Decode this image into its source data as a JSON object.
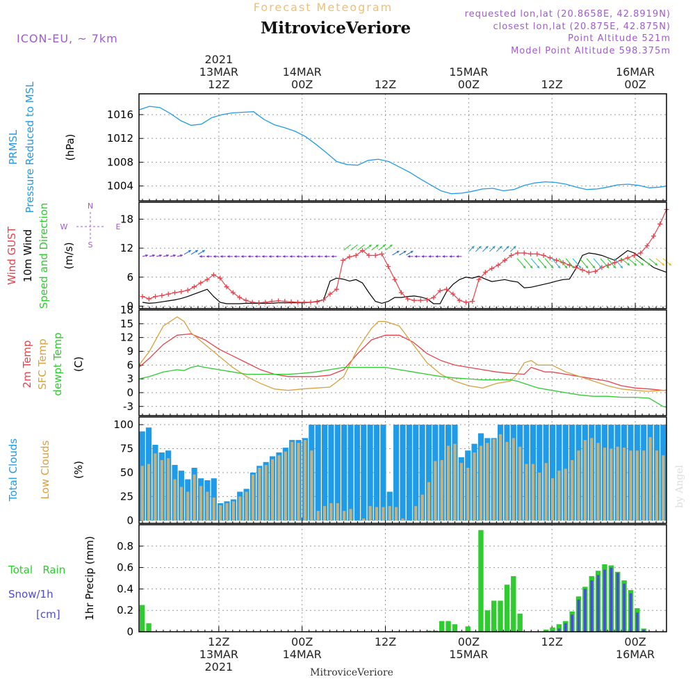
{
  "header": {
    "top_title": "Forecast Meteogram",
    "station": "MitroviceVeriore",
    "model": "ICON-EU, ~ 7km",
    "requested": "requested lon,lat (20.8658E, 42.8919N)",
    "closest": "closest lon,lat (20.875E, 42.875N)",
    "point_alt": "Point Altitude 521m",
    "model_alt": "Model Point Altitude 598.375m",
    "footer_station": "MitroviceVeriore",
    "watermark": "by Angel"
  },
  "colors": {
    "prmsl": "#1f9be8",
    "gust": "#e8424a",
    "wind": "#000000",
    "arrows_green": "#2ecc2e",
    "arrows_violet": "#7a2fd0",
    "t2m": "#e8424a",
    "sfc": "#d9a040",
    "dew": "#2ecc2e",
    "total_clouds": "#1f9be8",
    "low_clouds": "#c8b07a",
    "rain": "#2ecc2e",
    "snow": "#4a4ae0",
    "header_violet": "#a05ad0",
    "title_orange": "#f0c070"
  },
  "time_axis": {
    "top_labels": [
      {
        "x": 12,
        "lines": [
          "2021",
          "13MAR",
          "12Z"
        ]
      },
      {
        "x": 24,
        "lines": [
          "14MAR",
          "00Z"
        ]
      },
      {
        "x": 36,
        "lines": [
          "12Z"
        ]
      },
      {
        "x": 48,
        "lines": [
          "15MAR",
          "00Z"
        ]
      },
      {
        "x": 60,
        "lines": [
          "12Z"
        ]
      },
      {
        "x": 72,
        "lines": [
          "16MAR",
          "00Z"
        ]
      }
    ],
    "bottom_labels": [
      {
        "x": 12,
        "lines": [
          "12Z",
          "13MAR",
          "2021"
        ]
      },
      {
        "x": 24,
        "lines": [
          "00Z",
          "14MAR"
        ]
      },
      {
        "x": 36,
        "lines": [
          "12Z"
        ]
      },
      {
        "x": 48,
        "lines": [
          "00Z",
          "15MAR"
        ]
      },
      {
        "x": 60,
        "lines": [
          "12Z"
        ]
      },
      {
        "x": 72,
        "lines": [
          "00Z",
          "16MAR"
        ]
      }
    ],
    "xlim": [
      0.5,
      76.5
    ]
  },
  "panels": {
    "pressure": {
      "label1": "PRMSL",
      "label2": "Pressure Reduced to MSL",
      "unit": "(hPa)"
    },
    "wind": {
      "label_gust": "Wind GUST",
      "label_wind": "10m Wind",
      "label_dir": "Speed and Direction",
      "unit": "(m/s)",
      "compass": [
        "N",
        "S",
        "W",
        "E"
      ]
    },
    "temp": {
      "label1": "2m Temp",
      "label2": "SFC Temp",
      "label3": "dewpt Temp",
      "unit": "(C)"
    },
    "clouds": {
      "label1": "Total Clouds",
      "label2": "Low Clouds",
      "unit": "(%)"
    },
    "precip": {
      "label1": "Total   Rain",
      "label2": "Snow/1h",
      "label3": "[cm]",
      "unit": "1hr Precip (mm)"
    }
  },
  "chart_data": [
    {
      "type": "line",
      "id": "pressure",
      "ylabel": "(hPa)",
      "ylim": [
        1001.5,
        1019.5
      ],
      "yticks": [
        1004,
        1008,
        1012,
        1016
      ],
      "series": [
        {
          "name": "PRMSL",
          "color": "#1f9be8",
          "x": [
            0.5,
            2,
            3.5,
            5,
            6.5,
            8,
            9.5,
            11,
            12.5,
            14,
            15.5,
            17,
            18.5,
            20,
            21.5,
            23,
            24.5,
            26,
            27.5,
            29,
            30.5,
            32,
            33.5,
            35,
            36.5,
            38,
            39.5,
            41,
            42.5,
            44,
            45.5,
            47,
            48.5,
            50,
            51.5,
            53,
            54.5,
            56,
            57.5,
            59,
            60.5,
            62,
            63.5,
            65,
            66.5,
            68,
            69.5,
            71,
            72.5,
            74,
            75.5,
            76.5
          ],
          "values": [
            1016.8,
            1017.4,
            1017.2,
            1016.2,
            1015.0,
            1014.2,
            1014.4,
            1015.5,
            1016.0,
            1016.3,
            1016.4,
            1016.5,
            1015.2,
            1014.3,
            1013.8,
            1013.2,
            1012.3,
            1011.0,
            1009.6,
            1008.1,
            1007.6,
            1007.5,
            1008.3,
            1008.5,
            1008.1,
            1007.2,
            1006.3,
            1005.2,
            1004.2,
            1003.2,
            1002.7,
            1002.8,
            1003.1,
            1003.5,
            1003.6,
            1003.2,
            1003.4,
            1004.1,
            1004.5,
            1004.7,
            1004.6,
            1004.3,
            1003.8,
            1003.4,
            1003.5,
            1003.8,
            1004.2,
            1004.3,
            1004.1,
            1003.7,
            1003.8,
            1004.0
          ]
        }
      ]
    },
    {
      "type": "line",
      "id": "wind",
      "ylabel": "(m/s)",
      "ylim": [
        -0.5,
        21.5
      ],
      "yticks": [
        0,
        6,
        12,
        18
      ],
      "series": [
        {
          "name": "Wind GUST",
          "color": "#e8424a",
          "marker": "+",
          "values": [
            2.0,
            1.5,
            2.0,
            2.2,
            2.5,
            2.8,
            3.0,
            3.3,
            4.0,
            4.8,
            5.5,
            6.5,
            5.8,
            4.0,
            2.8,
            1.8,
            1.2,
            0.8,
            0.7,
            0.8,
            1.0,
            1.1,
            1.0,
            0.9,
            0.8,
            0.8,
            0.8,
            0.9,
            1.3,
            2.5,
            3.5,
            9.5,
            10.2,
            10.5,
            11.5,
            10.5,
            10.5,
            10.8,
            8.2,
            5.5,
            2.8,
            1.5,
            1.2,
            1.2,
            1.3,
            1.8,
            3.2,
            3.5,
            2.5,
            1.2,
            0.8,
            1.0,
            5.5,
            7.0,
            7.8,
            8.5,
            9.5,
            10.5,
            11.0,
            11.0,
            10.8,
            10.8,
            10.5,
            10.0,
            9.5,
            9.0,
            8.5,
            8.0,
            7.5,
            7.0,
            7.2,
            8.0,
            8.5,
            9.0,
            9.5,
            10.0,
            10.5,
            11.0,
            12.5,
            14.5,
            17.0,
            20.0
          ]
        },
        {
          "name": "10m Wind",
          "color": "#000000",
          "values": [
            0.8,
            0.6,
            0.7,
            0.9,
            1.1,
            1.3,
            1.6,
            2.0,
            2.5,
            3.0,
            3.5,
            2.0,
            0.8,
            0.5,
            0.5,
            0.5,
            0.6,
            0.6,
            0.6,
            0.6,
            0.6,
            0.7,
            0.7,
            0.7,
            0.7,
            0.7,
            0.8,
            1.0,
            1.3,
            5.2,
            5.8,
            5.6,
            5.2,
            5.5,
            4.8,
            2.8,
            1.0,
            0.6,
            1.0,
            1.8,
            1.8,
            2.0,
            2.1,
            1.9,
            1.5,
            0.5,
            0.5,
            3.0,
            4.5,
            5.5,
            6.0,
            5.8,
            6.2,
            5.6,
            5.1,
            5.3,
            5.5,
            5.2,
            5.0,
            3.8,
            3.9,
            4.2,
            4.5,
            4.8,
            5.2,
            5.5,
            5.6,
            7.8,
            10.5,
            11.0,
            10.8,
            10.5,
            10.0,
            9.5,
            10.5,
            11.5,
            11.0,
            10.0,
            9.0,
            8.0,
            7.5,
            7.0
          ]
        }
      ]
    },
    {
      "type": "line",
      "id": "temp",
      "ylabel": "(C)",
      "ylim": [
        -5,
        18
      ],
      "yticks": [
        -3,
        0,
        3,
        6,
        9,
        12,
        15,
        18
      ],
      "series": [
        {
          "name": "2m Temp",
          "color": "#e8424a",
          "x": [
            0.5,
            2,
            4,
            6,
            8,
            10,
            12,
            14,
            16,
            18,
            20,
            22,
            24,
            26,
            28,
            30,
            32,
            34,
            36,
            38,
            40,
            42,
            44,
            46,
            48,
            50,
            52,
            54,
            56,
            57,
            58,
            59,
            60,
            62,
            64,
            66,
            68,
            70,
            72,
            74,
            76,
            76.5
          ],
          "values": [
            5.5,
            7.5,
            10.5,
            12.5,
            12.8,
            11.5,
            9.5,
            8.0,
            6.5,
            5.0,
            4.0,
            3.5,
            3.5,
            3.5,
            3.8,
            5.0,
            8.5,
            11.5,
            12.5,
            12.5,
            11.0,
            8.5,
            7.0,
            6.0,
            5.5,
            5.0,
            4.5,
            4.2,
            4.0,
            5.5,
            5.0,
            4.5,
            4.5,
            4.0,
            3.5,
            3.0,
            2.5,
            1.5,
            1.0,
            0.8,
            0.5,
            0.5
          ]
        },
        {
          "name": "SFC Temp",
          "color": "#d9a040",
          "x": [
            0.5,
            2,
            4,
            6,
            7,
            8,
            10,
            12,
            14,
            16,
            18,
            20,
            22,
            24,
            26,
            28,
            30,
            32,
            34,
            35,
            36,
            38,
            40,
            42,
            44,
            46,
            48,
            50,
            52,
            54,
            55,
            56,
            57,
            58,
            60,
            62,
            64,
            66,
            68,
            70,
            72,
            74,
            76,
            76.5
          ],
          "values": [
            6.0,
            9.0,
            14.5,
            16.5,
            15.5,
            13.0,
            10.5,
            8.0,
            5.5,
            3.5,
            2.0,
            0.8,
            0.5,
            0.8,
            1.0,
            1.2,
            3.5,
            9.5,
            14.0,
            15.5,
            15.5,
            14.5,
            10.5,
            6.5,
            4.0,
            2.5,
            1.5,
            1.0,
            2.0,
            2.5,
            4.0,
            6.5,
            7.0,
            6.0,
            6.0,
            4.5,
            3.5,
            2.5,
            1.5,
            0.8,
            0.5,
            0.3,
            0.5,
            0.6
          ]
        },
        {
          "name": "dewpt Temp",
          "color": "#2ecc2e",
          "x": [
            0.5,
            2,
            4,
            6,
            7,
            8,
            9,
            10,
            12,
            14,
            16,
            18,
            20,
            22,
            24,
            26,
            28,
            30,
            32,
            34,
            36,
            38,
            40,
            42,
            44,
            46,
            48,
            50,
            52,
            54,
            55,
            56,
            58,
            60,
            62,
            64,
            66,
            68,
            70,
            72,
            74,
            76,
            76.5
          ],
          "values": [
            3.0,
            3.5,
            4.5,
            5.0,
            4.8,
            5.5,
            5.8,
            5.5,
            5.0,
            4.5,
            4.0,
            4.0,
            4.0,
            4.0,
            4.2,
            4.5,
            5.0,
            5.5,
            5.5,
            5.5,
            5.5,
            5.0,
            4.5,
            4.0,
            3.5,
            3.2,
            3.0,
            2.8,
            2.8,
            2.8,
            2.5,
            2.0,
            1.0,
            0.5,
            0.0,
            -0.5,
            -0.8,
            -0.8,
            -1.0,
            -1.0,
            -1.2,
            -3.0,
            -3.2
          ]
        }
      ]
    },
    {
      "type": "bar",
      "id": "clouds",
      "ylabel": "(%)",
      "ylim": [
        -3,
        108
      ],
      "yticks": [
        0,
        25,
        50,
        75,
        100
      ],
      "series": [
        {
          "name": "Total Clouds",
          "color": "#1f9be8",
          "values": [
            93,
            97,
            79,
            71,
            73,
            58,
            52,
            43,
            55,
            44,
            42,
            44,
            18,
            20,
            22,
            30,
            33,
            50,
            57,
            61,
            67,
            71,
            76,
            84,
            84,
            86,
            100,
            100,
            100,
            100,
            100,
            100,
            100,
            100,
            100,
            100,
            100,
            100,
            30,
            100,
            100,
            100,
            100,
            100,
            100,
            100,
            100,
            100,
            100,
            66,
            73,
            80,
            91,
            86,
            86,
            100,
            100,
            100,
            100,
            100,
            100,
            100,
            100,
            100,
            100,
            100,
            100,
            100,
            100,
            100,
            100,
            100,
            100,
            100,
            100,
            100,
            100,
            100,
            100,
            100,
            100
          ]
        },
        {
          "name": "Low Clouds",
          "color": "#c8b07a",
          "values": [
            57,
            59,
            70,
            63,
            65,
            43,
            35,
            30,
            48,
            36,
            30,
            24,
            16,
            18,
            20,
            25,
            30,
            48,
            55,
            58,
            64,
            68,
            72,
            82,
            81,
            84,
            73,
            10,
            15,
            18,
            18,
            10,
            12,
            0,
            2,
            15,
            14,
            14,
            15,
            14,
            2,
            0,
            15,
            27,
            40,
            62,
            63,
            78,
            80,
            60,
            55,
            71,
            78,
            81,
            85,
            90,
            82,
            86,
            77,
            59,
            59,
            50,
            60,
            44,
            52,
            54,
            63,
            73,
            84,
            86,
            81,
            76,
            75,
            77,
            76,
            73,
            73,
            73,
            87,
            73,
            68
          ]
        }
      ]
    },
    {
      "type": "bar",
      "id": "precip",
      "ylabel": "1hr Precip (mm)",
      "ylim": [
        0,
        1.0
      ],
      "yticks": [
        0,
        0.2,
        0.4,
        0.6,
        0.8
      ],
      "series": [
        {
          "name": "Total Rain",
          "color": "#2ecc2e",
          "values": [
            0.25,
            0.08,
            0,
            0,
            0,
            0,
            0,
            0,
            0,
            0,
            0,
            0,
            0,
            0,
            0,
            0,
            0,
            0,
            0,
            0,
            0,
            0,
            0,
            0,
            0,
            0,
            0,
            0,
            0,
            0,
            0,
            0,
            0,
            0,
            0,
            0,
            0,
            0,
            0,
            0,
            0,
            0,
            0,
            0,
            0.01,
            0.01,
            0.1,
            0.1,
            0.07,
            0.0,
            0.05,
            0.0,
            0.95,
            0.2,
            0.29,
            0.29,
            0.44,
            0.52,
            0.17,
            0,
            0,
            0,
            0.02,
            0.04,
            0.07,
            0.1,
            0.19,
            0.33,
            0.42,
            0.52,
            0.57,
            0.63,
            0.62,
            0.56,
            0.48,
            0.39,
            0.22,
            0.03,
            0,
            0,
            0
          ]
        },
        {
          "name": "Snow/1h",
          "color": "#4a4ae0",
          "values": [
            0,
            0,
            0,
            0,
            0,
            0,
            0,
            0,
            0,
            0,
            0,
            0,
            0,
            0,
            0,
            0,
            0,
            0,
            0,
            0,
            0,
            0,
            0,
            0,
            0,
            0,
            0,
            0,
            0,
            0,
            0,
            0,
            0,
            0,
            0,
            0,
            0,
            0,
            0,
            0,
            0,
            0,
            0,
            0,
            0,
            0,
            0,
            0,
            0,
            0,
            0,
            0,
            0,
            0,
            0,
            0,
            0,
            0,
            0,
            0,
            0,
            0,
            0,
            0.01,
            0.03,
            0.08,
            0.16,
            0.3,
            0.4,
            0.48,
            0.53,
            0.58,
            0.6,
            0.55,
            0.45,
            0.36,
            0.18,
            0.02,
            0,
            0,
            0
          ]
        }
      ]
    }
  ]
}
